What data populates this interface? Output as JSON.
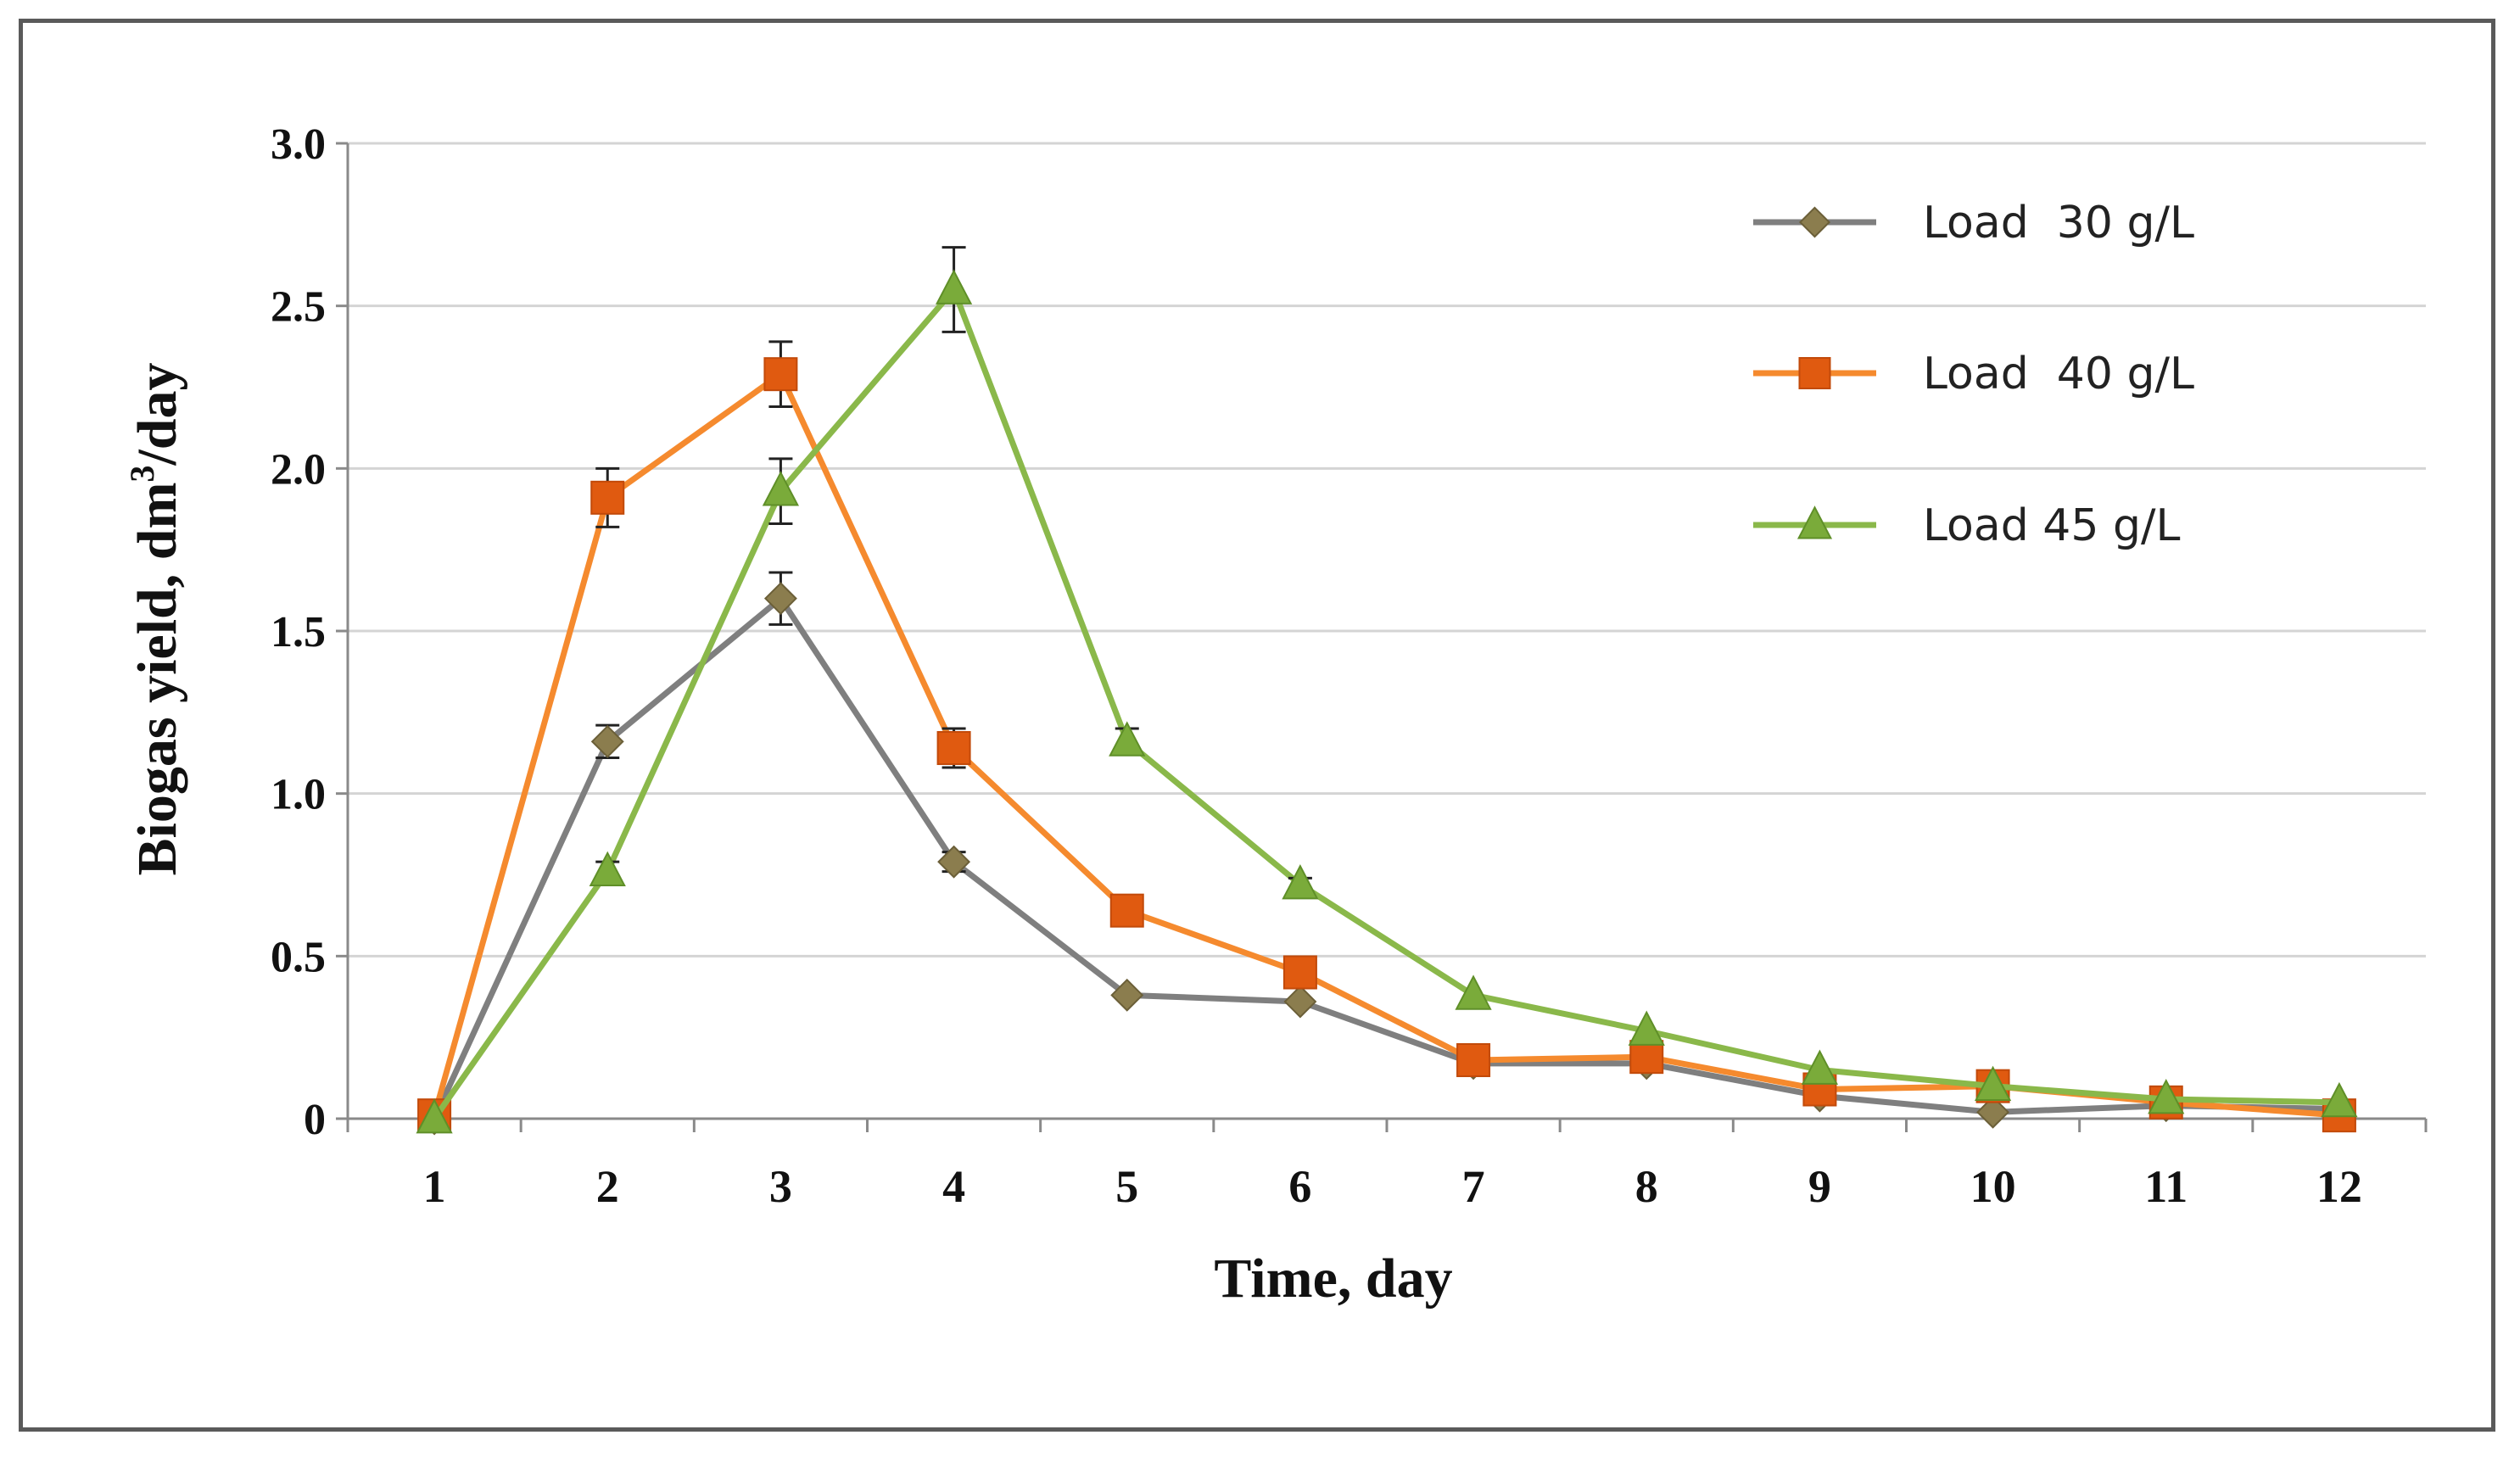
{
  "chart_data": {
    "type": "line",
    "title": "",
    "xlabel": "Time, day",
    "ylabel_main": "Biogas yield, dm",
    "ylabel_sup": "3",
    "ylabel_end": "/day",
    "x": [
      1,
      2,
      3,
      4,
      5,
      6,
      7,
      8,
      9,
      10,
      11,
      12
    ],
    "x_tick_labels": [
      "1",
      "2",
      "3",
      "4",
      "5",
      "6",
      "7",
      "8",
      "9",
      "10",
      "11",
      "12"
    ],
    "ylim": [
      0,
      3.0
    ],
    "y_ticks": [
      0,
      0.5,
      1.0,
      1.5,
      2.0,
      2.5,
      3.0
    ],
    "y_tick_labels": [
      "0",
      "0.5",
      "1.0",
      "1.5",
      "2.0",
      "2.5",
      "3.0"
    ],
    "grid": "horizontal",
    "legend_position": "top-right",
    "series": [
      {
        "name": "Load  30 g/L",
        "color": "#7f7f7f",
        "marker_color": "#8b7d4e",
        "marker": "diamond",
        "values": [
          0.0,
          1.16,
          1.6,
          0.79,
          0.38,
          0.36,
          0.17,
          0.17,
          0.07,
          0.02,
          0.04,
          0.03
        ],
        "errors": [
          0,
          0.05,
          0.08,
          0.03,
          0,
          0,
          0,
          0,
          0,
          0,
          0,
          0
        ]
      },
      {
        "name": "Load  40 g/L",
        "color": "#f58a2e",
        "marker_color": "#e05a10",
        "marker": "square",
        "values": [
          0.01,
          1.91,
          2.29,
          1.14,
          0.64,
          0.45,
          0.18,
          0.19,
          0.09,
          0.1,
          0.05,
          0.01
        ],
        "errors": [
          0,
          0.09,
          0.1,
          0.06,
          0,
          0,
          0,
          0,
          0,
          0,
          0,
          0
        ]
      },
      {
        "name": "Load 45 g/L",
        "color": "#8ab84a",
        "marker_color": "#7aab3a",
        "marker": "triangle",
        "values": [
          0.0,
          0.76,
          1.93,
          2.55,
          1.16,
          0.72,
          0.38,
          0.27,
          0.15,
          0.1,
          0.06,
          0.05
        ],
        "errors": [
          0,
          0.03,
          0.1,
          0.13,
          0.04,
          0.02,
          0,
          0,
          0,
          0,
          0,
          0
        ]
      }
    ]
  }
}
